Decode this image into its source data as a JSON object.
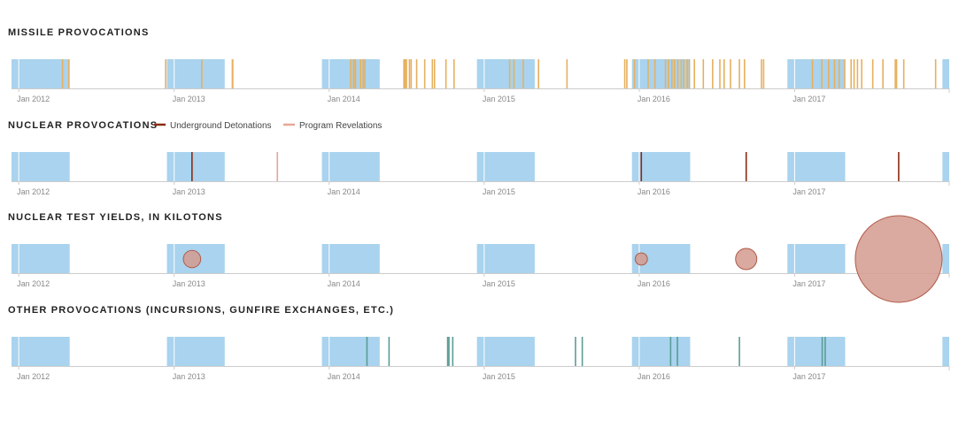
{
  "chart_data": {
    "type": "timeline",
    "x_range": [
      "2011-12-15",
      "2017-12-31"
    ],
    "ticks": [
      {
        "date": "2012-01-01",
        "label": "Jan 2012"
      },
      {
        "date": "2013-01-01",
        "label": "Jan 2013"
      },
      {
        "date": "2014-01-01",
        "label": "Jan 2014"
      },
      {
        "date": "2015-01-01",
        "label": "Jan 2015"
      },
      {
        "date": "2016-01-01",
        "label": "Jan 2016"
      },
      {
        "date": "2017-01-01",
        "label": "Jan 2017"
      }
    ],
    "shaded_periods": [
      {
        "start": "2011-12-15",
        "end": "2012-04-30"
      },
      {
        "start": "2012-12-15",
        "end": "2013-04-30"
      },
      {
        "start": "2013-12-15",
        "end": "2014-04-30"
      },
      {
        "start": "2014-12-15",
        "end": "2015-04-30"
      },
      {
        "start": "2015-12-15",
        "end": "2016-04-30"
      },
      {
        "start": "2016-12-15",
        "end": "2017-04-30"
      },
      {
        "start": "2017-12-15",
        "end": "2017-12-31"
      }
    ],
    "colors": {
      "shade": "#a9d3ee",
      "axis": "#cccccc",
      "missile": "#e6b05f",
      "detonation": "#8b2a12",
      "revelation": "#e8a598",
      "yield_fill": "#d49a8e",
      "yield_stroke": "#b05a4a",
      "other": "#5a9c97"
    },
    "panels": [
      {
        "id": "missile",
        "title": "MISSILE PROVOCATIONS",
        "events": [
          {
            "date": "2012-04-13",
            "kind": "missile"
          },
          {
            "date": "2012-04-28",
            "kind": "missile"
          },
          {
            "date": "2012-12-12",
            "kind": "missile"
          },
          {
            "date": "2013-03-07",
            "kind": "missile"
          },
          {
            "date": "2013-05-18",
            "kind": "missile"
          },
          {
            "date": "2013-05-19",
            "kind": "missile"
          },
          {
            "date": "2014-02-21",
            "kind": "missile"
          },
          {
            "date": "2014-02-27",
            "kind": "missile"
          },
          {
            "date": "2014-03-03",
            "kind": "missile"
          },
          {
            "date": "2014-03-04",
            "kind": "missile"
          },
          {
            "date": "2014-03-16",
            "kind": "missile"
          },
          {
            "date": "2014-03-22",
            "kind": "missile"
          },
          {
            "date": "2014-03-26",
            "kind": "missile"
          },
          {
            "date": "2014-06-26",
            "kind": "missile"
          },
          {
            "date": "2014-06-29",
            "kind": "missile"
          },
          {
            "date": "2014-07-02",
            "kind": "missile"
          },
          {
            "date": "2014-07-09",
            "kind": "missile"
          },
          {
            "date": "2014-07-13",
            "kind": "missile"
          },
          {
            "date": "2014-07-26",
            "kind": "missile"
          },
          {
            "date": "2014-08-14",
            "kind": "missile"
          },
          {
            "date": "2014-09-01",
            "kind": "missile"
          },
          {
            "date": "2014-09-06",
            "kind": "missile"
          },
          {
            "date": "2014-10-03",
            "kind": "missile"
          },
          {
            "date": "2014-10-22",
            "kind": "missile"
          },
          {
            "date": "2015-03-02",
            "kind": "missile"
          },
          {
            "date": "2015-03-12",
            "kind": "missile"
          },
          {
            "date": "2015-04-03",
            "kind": "missile"
          },
          {
            "date": "2015-05-09",
            "kind": "missile"
          },
          {
            "date": "2015-07-15",
            "kind": "missile"
          },
          {
            "date": "2015-11-28",
            "kind": "missile"
          },
          {
            "date": "2015-12-03",
            "kind": "missile"
          },
          {
            "date": "2015-12-21",
            "kind": "missile"
          },
          {
            "date": "2016-01-22",
            "kind": "missile"
          },
          {
            "date": "2016-02-07",
            "kind": "missile"
          },
          {
            "date": "2016-03-03",
            "kind": "missile"
          },
          {
            "date": "2016-03-10",
            "kind": "missile"
          },
          {
            "date": "2016-03-18",
            "kind": "missile"
          },
          {
            "date": "2016-03-24",
            "kind": "missile"
          },
          {
            "date": "2016-04-01",
            "kind": "missile"
          },
          {
            "date": "2016-04-09",
            "kind": "missile"
          },
          {
            "date": "2016-04-15",
            "kind": "missile"
          },
          {
            "date": "2016-04-23",
            "kind": "missile"
          },
          {
            "date": "2016-04-28",
            "kind": "missile"
          },
          {
            "date": "2016-05-10",
            "kind": "missile"
          },
          {
            "date": "2016-05-31",
            "kind": "missile"
          },
          {
            "date": "2016-06-22",
            "kind": "missile"
          },
          {
            "date": "2016-07-09",
            "kind": "missile"
          },
          {
            "date": "2016-07-19",
            "kind": "missile"
          },
          {
            "date": "2016-08-03",
            "kind": "missile"
          },
          {
            "date": "2016-08-24",
            "kind": "missile"
          },
          {
            "date": "2016-09-05",
            "kind": "missile"
          },
          {
            "date": "2016-10-15",
            "kind": "missile"
          },
          {
            "date": "2016-10-20",
            "kind": "missile"
          },
          {
            "date": "2017-02-12",
            "kind": "missile"
          },
          {
            "date": "2017-03-06",
            "kind": "missile"
          },
          {
            "date": "2017-03-22",
            "kind": "missile"
          },
          {
            "date": "2017-04-05",
            "kind": "missile"
          },
          {
            "date": "2017-04-16",
            "kind": "missile"
          },
          {
            "date": "2017-04-29",
            "kind": "missile"
          },
          {
            "date": "2017-05-14",
            "kind": "missile"
          },
          {
            "date": "2017-05-21",
            "kind": "missile"
          },
          {
            "date": "2017-05-29",
            "kind": "missile"
          },
          {
            "date": "2017-06-08",
            "kind": "missile"
          },
          {
            "date": "2017-07-04",
            "kind": "missile"
          },
          {
            "date": "2017-07-28",
            "kind": "missile"
          },
          {
            "date": "2017-08-26",
            "kind": "missile"
          },
          {
            "date": "2017-08-29",
            "kind": "missile"
          },
          {
            "date": "2017-09-15",
            "kind": "missile"
          },
          {
            "date": "2017-11-29",
            "kind": "missile"
          }
        ]
      },
      {
        "id": "nuclear",
        "title": "NUCLEAR PROVOCATIONS",
        "legend": [
          {
            "label": "Underground Detonations",
            "kind": "detonation"
          },
          {
            "label": "Program Revelations",
            "kind": "revelation"
          }
        ],
        "events": [
          {
            "date": "2013-02-12",
            "kind": "detonation"
          },
          {
            "date": "2013-09-01",
            "kind": "revelation"
          },
          {
            "date": "2016-01-06",
            "kind": "detonation"
          },
          {
            "date": "2016-09-09",
            "kind": "detonation"
          },
          {
            "date": "2017-09-03",
            "kind": "detonation"
          }
        ]
      },
      {
        "id": "yields",
        "title": "NUCLEAR TEST YIELDS, IN KILOTONS",
        "events": [
          {
            "date": "2013-02-12",
            "yield_kt": 10
          },
          {
            "date": "2016-01-06",
            "yield_kt": 5
          },
          {
            "date": "2016-09-09",
            "yield_kt": 15
          },
          {
            "date": "2017-09-03",
            "yield_kt": 250
          }
        ]
      },
      {
        "id": "other",
        "title": "OTHER PROVOCATIONS (INCURSIONS, GUNFIRE EXCHANGES, ETC.)",
        "events": [
          {
            "date": "2014-03-31",
            "kind": "other"
          },
          {
            "date": "2014-05-22",
            "kind": "other"
          },
          {
            "date": "2014-10-07",
            "kind": "other"
          },
          {
            "date": "2014-10-10",
            "kind": "other"
          },
          {
            "date": "2014-10-19",
            "kind": "other"
          },
          {
            "date": "2015-08-04",
            "kind": "other"
          },
          {
            "date": "2015-08-20",
            "kind": "other"
          },
          {
            "date": "2016-03-15",
            "kind": "other"
          },
          {
            "date": "2016-03-31",
            "kind": "other"
          },
          {
            "date": "2016-08-24",
            "kind": "other"
          },
          {
            "date": "2017-03-07",
            "kind": "other"
          },
          {
            "date": "2017-03-14",
            "kind": "other"
          }
        ]
      }
    ]
  }
}
